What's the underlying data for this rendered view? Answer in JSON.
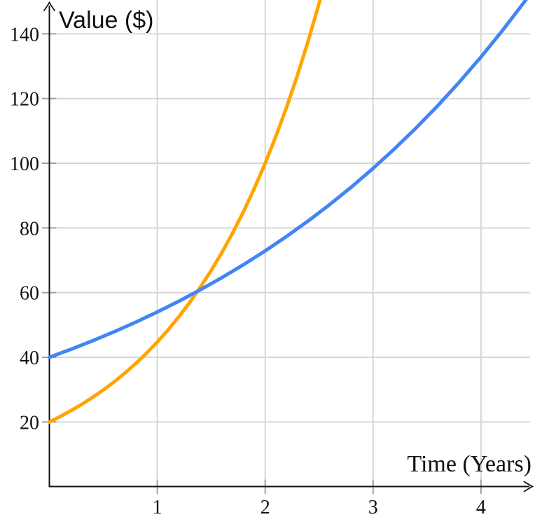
{
  "chart_data": {
    "type": "line",
    "title": "",
    "xlabel": "Time (Years)",
    "ylabel": "Value ($)",
    "xlim": [
      0,
      4.5
    ],
    "ylim": [
      0,
      150.5
    ],
    "xticks": [
      1,
      2,
      3,
      4
    ],
    "yticks": [
      20,
      40,
      60,
      80,
      100,
      120,
      140
    ],
    "grid": true,
    "legend_position": "none",
    "colors": {
      "axis": "#111111",
      "grid": "#d5d5d5",
      "tick": "#9e9e9e",
      "label": "#111111"
    },
    "series": [
      {
        "name": "orange-growth-curve",
        "color": "#FFA500",
        "start_value": 20,
        "x": [
          0,
          0.1,
          0.2,
          0.3,
          0.4,
          0.5,
          0.6,
          0.7,
          0.8,
          0.9,
          1,
          1.1,
          1.2,
          1.3,
          1.4,
          1.5,
          1.6,
          1.7,
          1.8,
          1.9,
          2,
          2.1,
          2.2,
          2.3,
          2.4,
          2.5,
          2.55
        ],
        "y": [
          20,
          21.68,
          23.49,
          25.46,
          27.59,
          29.91,
          32.41,
          35.13,
          38.07,
          41.26,
          44.72,
          48.47,
          52.53,
          56.93,
          61.7,
          66.87,
          72.48,
          78.55,
          85.13,
          92.27,
          100,
          108.38,
          117.46,
          127.31,
          137.97,
          149.53,
          155.68
        ]
      },
      {
        "name": "blue-growth-curve",
        "color": "#4285F4",
        "start_value": 40,
        "x": [
          0,
          0.2,
          0.4,
          0.6,
          0.8,
          1,
          1.2,
          1.4,
          1.6,
          1.8,
          2,
          2.2,
          2.4,
          2.6,
          2.8,
          3,
          3.2,
          3.4,
          3.6,
          3.8,
          4,
          4.2,
          4.4,
          4.5
        ],
        "y": [
          40,
          42.48,
          45.1,
          47.89,
          50.85,
          54,
          57.34,
          60.89,
          64.65,
          68.65,
          72.9,
          77.41,
          82.2,
          87.28,
          92.68,
          98.41,
          104.5,
          110.96,
          117.83,
          125.12,
          132.86,
          141.08,
          149.8,
          154.35
        ]
      }
    ]
  }
}
